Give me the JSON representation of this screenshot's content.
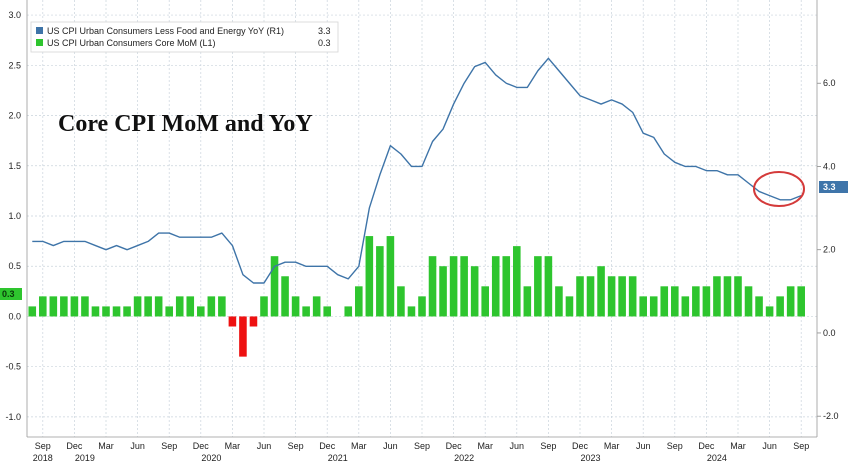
{
  "chart_data": {
    "type": "bar+line",
    "title": "Core CPI MoM and YoY",
    "legend": [
      {
        "label": "US CPI Urban Consumers Less Food and Energy YoY (R1)",
        "value": "3.3",
        "color": "#3e74a8"
      },
      {
        "label": "US CPI Urban Consumers Core MoM (L1)",
        "value": "0.3",
        "color": "#2ec52e"
      }
    ],
    "left_axis": {
      "ticks": [
        "3.0",
        "2.5",
        "2.0",
        "1.5",
        "1.0",
        "0.5",
        "0.0",
        "-0.5",
        "-1.0"
      ],
      "range": [
        -1.2,
        3.15
      ]
    },
    "right_axis": {
      "ticks": [
        "6.0",
        "4.0",
        "2.0",
        "0.0",
        "-2.0"
      ],
      "range": [
        -2.5,
        8.0
      ]
    },
    "x_month_labels": [
      "Sep",
      "Dec",
      "Mar",
      "Jun",
      "Sep",
      "Dec",
      "Mar",
      "Jun",
      "Sep",
      "Dec",
      "Mar",
      "Jun",
      "Sep",
      "Dec",
      "Mar",
      "Jun",
      "Sep",
      "Dec",
      "Mar",
      "Jun",
      "Sep",
      "Dec",
      "Mar",
      "Jun",
      "Sep"
    ],
    "x_year_labels": [
      "2018",
      "2019",
      "2020",
      "2021",
      "2022",
      "2023",
      "2024"
    ],
    "x_range": [
      "2018-08",
      "2024-10"
    ],
    "months": [
      "2018-08",
      "2018-09",
      "2018-10",
      "2018-11",
      "2018-12",
      "2019-01",
      "2019-02",
      "2019-03",
      "2019-04",
      "2019-05",
      "2019-06",
      "2019-07",
      "2019-08",
      "2019-09",
      "2019-10",
      "2019-11",
      "2019-12",
      "2020-01",
      "2020-02",
      "2020-03",
      "2020-04",
      "2020-05",
      "2020-06",
      "2020-07",
      "2020-08",
      "2020-09",
      "2020-10",
      "2020-11",
      "2020-12",
      "2021-01",
      "2021-02",
      "2021-03",
      "2021-04",
      "2021-05",
      "2021-06",
      "2021-07",
      "2021-08",
      "2021-09",
      "2021-10",
      "2021-11",
      "2021-12",
      "2022-01",
      "2022-02",
      "2022-03",
      "2022-04",
      "2022-05",
      "2022-06",
      "2022-07",
      "2022-08",
      "2022-09",
      "2022-10",
      "2022-11",
      "2022-12",
      "2023-01",
      "2023-02",
      "2023-03",
      "2023-04",
      "2023-05",
      "2023-06",
      "2023-07",
      "2023-08",
      "2023-09",
      "2023-10",
      "2023-11",
      "2023-12",
      "2024-01",
      "2024-02",
      "2024-03",
      "2024-04",
      "2024-05",
      "2024-06",
      "2024-07",
      "2024-08",
      "2024-09"
    ],
    "series": [
      {
        "name": "US CPI Urban Consumers Core MoM",
        "axis": "left",
        "kind": "bar",
        "values": [
          0.1,
          0.2,
          0.2,
          0.2,
          0.2,
          0.2,
          0.1,
          0.1,
          0.1,
          0.1,
          0.2,
          0.2,
          0.2,
          0.1,
          0.2,
          0.2,
          0.1,
          0.2,
          0.2,
          -0.1,
          -0.4,
          -0.1,
          0.2,
          0.6,
          0.4,
          0.2,
          0.1,
          0.2,
          0.1,
          0.0,
          0.1,
          0.3,
          0.8,
          0.7,
          0.8,
          0.3,
          0.1,
          0.2,
          0.6,
          0.5,
          0.6,
          0.6,
          0.5,
          0.3,
          0.6,
          0.6,
          0.7,
          0.3,
          0.6,
          0.6,
          0.3,
          0.2,
          0.4,
          0.4,
          0.5,
          0.4,
          0.4,
          0.4,
          0.2,
          0.2,
          0.3,
          0.3,
          0.2,
          0.3,
          0.3,
          0.4,
          0.4,
          0.4,
          0.3,
          0.2,
          0.1,
          0.2,
          0.3,
          0.3
        ]
      },
      {
        "name": "US CPI Urban Consumers Less Food and Energy YoY",
        "axis": "right",
        "kind": "line",
        "values": [
          2.2,
          2.2,
          2.1,
          2.2,
          2.2,
          2.2,
          2.1,
          2.0,
          2.1,
          2.0,
          2.1,
          2.2,
          2.4,
          2.4,
          2.3,
          2.3,
          2.3,
          2.3,
          2.4,
          2.1,
          1.4,
          1.2,
          1.2,
          1.6,
          1.7,
          1.7,
          1.6,
          1.6,
          1.6,
          1.4,
          1.3,
          1.6,
          3.0,
          3.8,
          4.5,
          4.3,
          4.0,
          4.0,
          4.6,
          4.9,
          5.5,
          6.0,
          6.4,
          6.5,
          6.2,
          6.0,
          5.9,
          5.9,
          6.3,
          6.6,
          6.3,
          6.0,
          5.7,
          5.6,
          5.5,
          5.6,
          5.5,
          5.3,
          4.8,
          4.7,
          4.3,
          4.1,
          4.0,
          4.0,
          3.9,
          3.9,
          3.8,
          3.8,
          3.6,
          3.4,
          3.3,
          3.2,
          3.2,
          3.3
        ]
      }
    ],
    "last_values": {
      "left_tag": "0.3",
      "right_tag": "3.3"
    },
    "grid": true,
    "legend_position": "top-left",
    "colors": {
      "bar_positive": "#2ec52e",
      "bar_negative": "#ee1111",
      "line": "#3e74a8",
      "grid": "#c9d3dc",
      "highlight_circle": "#d43a3a",
      "right_tag_bg": "#3f75aa",
      "left_tag_bg": "#2ec52e"
    }
  }
}
